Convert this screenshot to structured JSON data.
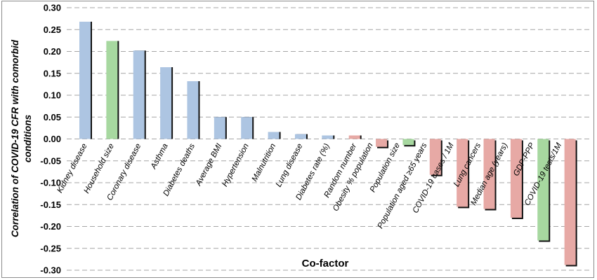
{
  "chart_data": {
    "type": "bar",
    "xlabel": "Co-factor",
    "ylabel_lines": [
      "Correlation of COVID-19 CFR with comorbid",
      "conditions"
    ],
    "ylim": [
      -0.3,
      0.3
    ],
    "yticks": [
      "0.30",
      "0.25",
      "0.20",
      "0.15",
      "0.10",
      "0.05",
      "0.00",
      "-0.05",
      "-0.10",
      "-0.15",
      "-0.20",
      "-0.25",
      "-0.30"
    ],
    "grid": true,
    "colors": {
      "blue": "#adc5e2",
      "green": "#a7d8a0",
      "red": "#e7a9a5"
    },
    "bars": [
      {
        "label": "Kidney disease",
        "value": 0.268,
        "color": "blue"
      },
      {
        "label": "Household size",
        "value": 0.224,
        "color": "green"
      },
      {
        "label": "Coronary disease",
        "value": 0.202,
        "color": "blue"
      },
      {
        "label": "Asthma",
        "value": 0.164,
        "color": "blue"
      },
      {
        "label": "Diabetes deaths",
        "value": 0.132,
        "color": "blue"
      },
      {
        "label": "Average BMI",
        "value": 0.05,
        "color": "blue"
      },
      {
        "label": "Hypertension",
        "value": 0.05,
        "color": "blue"
      },
      {
        "label": "Malnutrition",
        "value": 0.016,
        "color": "blue"
      },
      {
        "label": "Lung disease",
        "value": 0.011,
        "color": "blue"
      },
      {
        "label": "Diabetes rate (%)",
        "value": 0.008,
        "color": "blue"
      },
      {
        "label": "Random number",
        "value": 0.008,
        "color": "red"
      },
      {
        "label": "Obesity % population",
        "value": -0.018,
        "color": "red"
      },
      {
        "label": "Population size",
        "value": -0.014,
        "color": "green"
      },
      {
        "label": "Population aged ≥65 years",
        "value": -0.082,
        "color": "red"
      },
      {
        "label": "COVID-19 cases / 1M",
        "value": -0.155,
        "color": "red"
      },
      {
        "label": "Lung cancers",
        "value": -0.16,
        "color": "red"
      },
      {
        "label": "Median age (years)",
        "value": -0.18,
        "color": "red"
      },
      {
        "label": "GDP-PPP",
        "value": -0.232,
        "color": "green"
      },
      {
        "label": "COVID-19 tests/1M",
        "value": -0.288,
        "color": "red"
      }
    ]
  }
}
